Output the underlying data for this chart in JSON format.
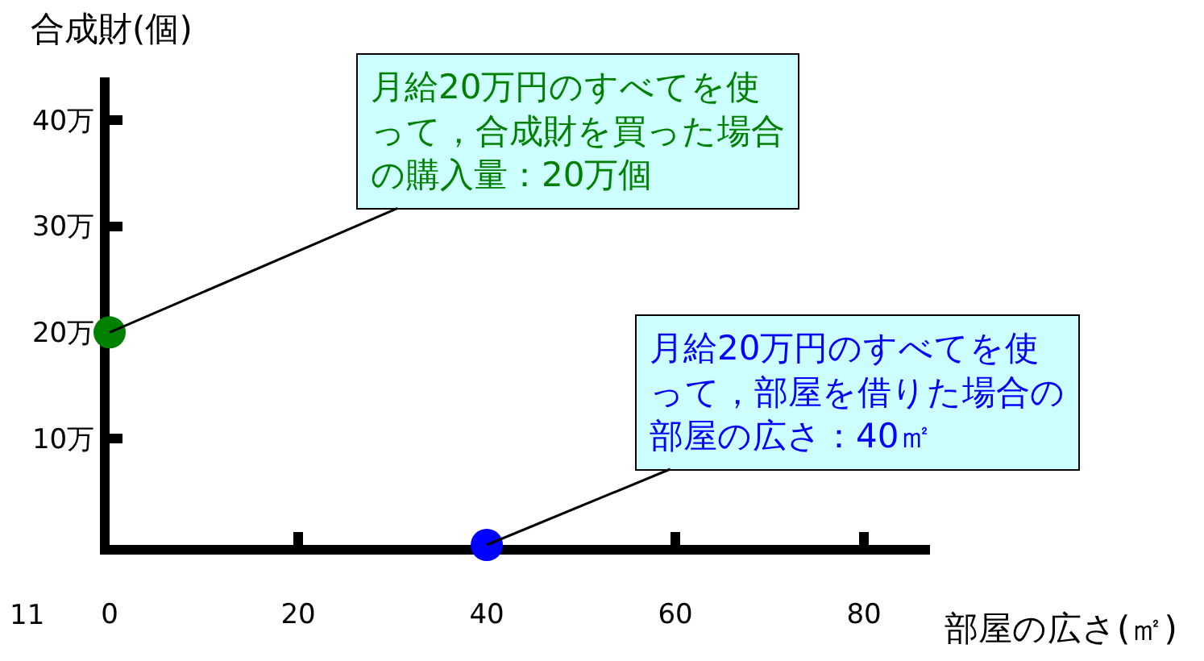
{
  "chart_data": {
    "type": "scatter",
    "xlabel": "部屋の広さ(㎡)",
    "ylabel": "合成財(個)",
    "series": [
      {
        "color": "#008000",
        "x": [
          0
        ],
        "values": [
          20
        ]
      },
      {
        "color": "#0000ff",
        "x": [
          40
        ],
        "values": [
          0
        ]
      }
    ],
    "xlim": [
      0,
      87
    ],
    "xticks": [
      0,
      20,
      40,
      60,
      80
    ],
    "ylim": [
      0,
      44
    ],
    "yticks": [
      {
        "value": 10,
        "label": "10万"
      },
      {
        "value": 20,
        "label": "20万"
      },
      {
        "value": 30,
        "label": "30万"
      },
      {
        "value": 40,
        "label": "40万"
      }
    ],
    "marker": "circle",
    "annotations": [
      {
        "text": "月給20万円のすべてを使って，合成財を買った場合の購入量：20万個",
        "x": 0,
        "y": 20
      },
      {
        "text": "月給20万円のすべてを使って，部屋を借りた場合の部屋の広さ：40㎡",
        "x": 40,
        "y": 0
      },
      "11"
    ]
  }
}
